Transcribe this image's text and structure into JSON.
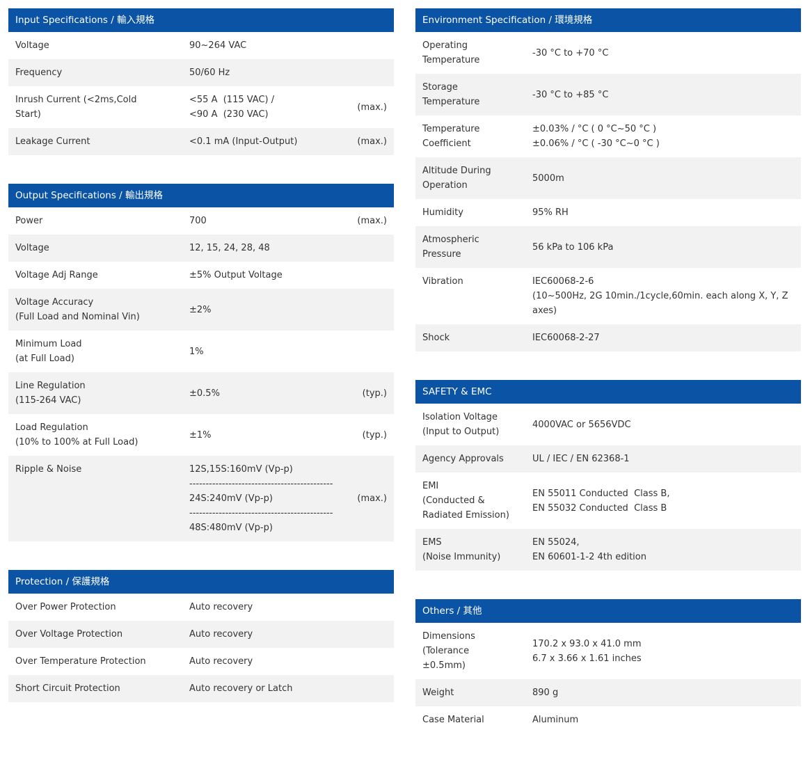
{
  "colors": {
    "header_bg": "#0a53a5",
    "header_text": "#ffffff",
    "row_alt_bg": "#f2f2f2",
    "row_bg": "#ffffff",
    "text": "#333333",
    "page_bg": "#ffffff"
  },
  "sections": [
    {
      "id": "input-specifications",
      "column": "left",
      "title": "Input Specifications / 輸入規格",
      "rows": [
        {
          "label": "Voltage",
          "value": "90~264 VAC",
          "note": ""
        },
        {
          "label": "Frequency",
          "value": "50/60 Hz",
          "note": ""
        },
        {
          "label": "Inrush Current (<2ms,Cold\nStart)",
          "value": "<55 A  (115 VAC) /\n<90 A  (230 VAC)",
          "note": "(max.)"
        },
        {
          "label": "Leakage Current",
          "value": "<0.1 mA (Input-Output)",
          "note": "(max.)"
        }
      ]
    },
    {
      "id": "output-specifications",
      "column": "left",
      "title": "Output Specifications / 輸出規格",
      "rows": [
        {
          "label": "Power",
          "value": "700",
          "note": "(max.)"
        },
        {
          "label": "Voltage",
          "value": "12, 15, 24, 28, 48",
          "note": ""
        },
        {
          "label": "Voltage Adj Range",
          "value": "±5% Output Voltage",
          "note": ""
        },
        {
          "label": "Voltage Accuracy\n(Full Load and Nominal Vin)",
          "value": "±2%",
          "note": ""
        },
        {
          "label": "Minimum Load\n(at Full Load)",
          "value": "1%",
          "note": ""
        },
        {
          "label": "Line Regulation\n(115-264 VAC)",
          "value": "±0.5%",
          "note": "(typ.)"
        },
        {
          "label": "Load Regulation\n(10% to 100% at Full Load)",
          "value": "±1%",
          "note": "(typ.)"
        },
        {
          "label": "Ripple & Noise",
          "label_top": true,
          "value": "12S,15S:160mV (Vp-p)\n--------------------------------------------\n24S:240mV (Vp-p)\n--------------------------------------------\n48S:480mV (Vp-p)",
          "note": "(max.)"
        }
      ]
    },
    {
      "id": "protection",
      "column": "left",
      "title": "Protection / 保護規格",
      "rows": [
        {
          "label": "Over Power Protection",
          "value": "Auto recovery"
        },
        {
          "label": "Over Voltage Protection",
          "value": "Auto recovery"
        },
        {
          "label": "Over Temperature Protection",
          "value": "Auto recovery"
        },
        {
          "label": "Short Circuit Protection",
          "value": "Auto recovery or Latch"
        }
      ]
    },
    {
      "id": "environment-specification",
      "column": "right",
      "title": "Environment Specification / 環境規格",
      "rows": [
        {
          "label": "Operating\nTemperature",
          "value": "-30 °C to +70 °C"
        },
        {
          "label": "Storage\nTemperature",
          "value": "-30 °C to +85 °C"
        },
        {
          "label": "Temperature\nCoefficient",
          "value": "±0.03% / °C ( 0 °C~50 °C )\n±0.06% / °C ( -30 °C~0 °C )"
        },
        {
          "label": "Altitude During\nOperation",
          "value": "5000m"
        },
        {
          "label": "Humidity",
          "value": "95% RH"
        },
        {
          "label": "Atmospheric\nPressure",
          "value": "56 kPa to 106 kPa"
        },
        {
          "label": "Vibration",
          "label_top": true,
          "value": "IEC60068-2-6\n(10~500Hz, 2G 10min./1cycle,60min. each along X, Y, Z axes)"
        },
        {
          "label": "Shock",
          "value": "IEC60068-2-27"
        }
      ]
    },
    {
      "id": "safety-emc",
      "column": "right",
      "title": "SAFETY & EMC",
      "rows": [
        {
          "label": "Isolation Voltage\n(Input to Output)",
          "value": "4000VAC or 5656VDC"
        },
        {
          "label": "Agency Approvals",
          "value": "UL / IEC / EN 62368-1"
        },
        {
          "label": "EMI\n(Conducted &\nRadiated Emission)",
          "value": "EN 55011 Conducted  Class B,\nEN 55032 Conducted  Class B"
        },
        {
          "label": "EMS\n(Noise Immunity)",
          "value": "EN 55024,\nEN 60601-1-2 4th edition"
        }
      ]
    },
    {
      "id": "others",
      "column": "right",
      "title": "Others / 其他",
      "rows": [
        {
          "label": "Dimensions\n(Tolerance\n±0.5mm)",
          "value": "170.2 x 93.0 x 41.0 mm\n6.7 x 3.66 x 1.61 inches"
        },
        {
          "label": "Weight",
          "value": "890 g"
        },
        {
          "label": "Case Material",
          "value": "Aluminum"
        }
      ]
    }
  ]
}
